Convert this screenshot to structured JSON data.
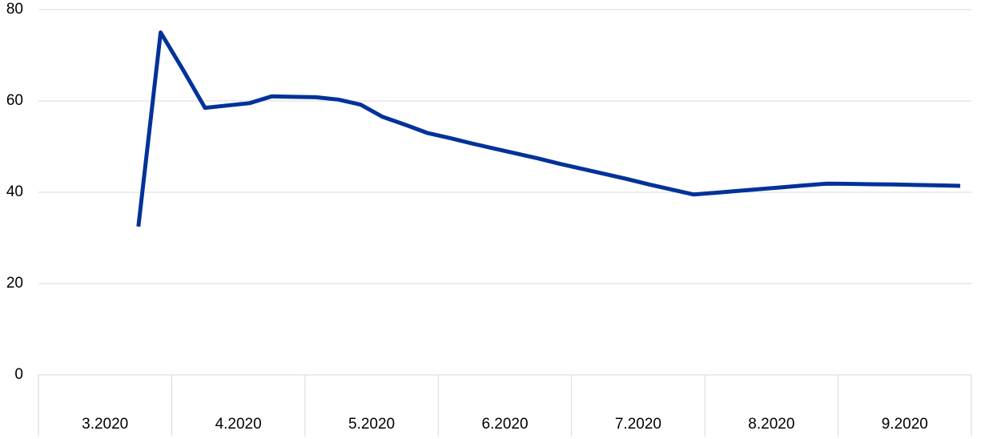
{
  "chart_data": {
    "type": "line",
    "categories": [
      "3.2020",
      null,
      null,
      null,
      null,
      null,
      "4.2020",
      null,
      null,
      null,
      null,
      null,
      "5.2020",
      null,
      null,
      null,
      null,
      null,
      "6.2020",
      null,
      null,
      null,
      null,
      null,
      "7.2020",
      null,
      null,
      null,
      null,
      null,
      "8.2020",
      null,
      null,
      null,
      null,
      null,
      "9.2020",
      null,
      null,
      null,
      null,
      null
    ],
    "series": [
      {
        "color": "#003299",
        "values": [
          null,
          null,
          null,
          null,
          32.5,
          75,
          66.9,
          58.5,
          59,
          59.5,
          61,
          60.9,
          60.8,
          60.3,
          59.2,
          56.5,
          54.8,
          53,
          51.9,
          50.7,
          49.6,
          48.5,
          47.4,
          46.2,
          45.1,
          44,
          42.9,
          41.7,
          40.6,
          39.5,
          39.9,
          40.3,
          40.7,
          41.1,
          41.5,
          41.9,
          41.85,
          41.75,
          41.7,
          41.6,
          41.5,
          41.4
        ]
      }
    ],
    "ylim": [
      0,
      80
    ],
    "yticks": [
      0,
      20,
      40,
      60,
      80
    ],
    "grid": true
  }
}
